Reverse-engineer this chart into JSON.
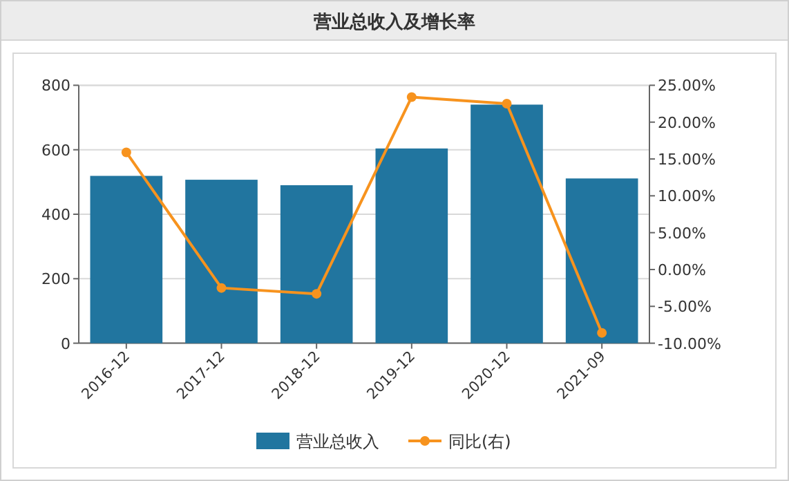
{
  "chart_data": {
    "type": "bar",
    "title": "营业总收入及增长率",
    "categories": [
      "2016-12",
      "2017-12",
      "2018-12",
      "2019-12",
      "2020-12",
      "2021-09"
    ],
    "series": [
      {
        "name": "营业总收入",
        "type": "bar",
        "color": "#21759f",
        "values": [
          519,
          507,
          490,
          604,
          740,
          511
        ]
      },
      {
        "name": "同比(右)",
        "type": "line",
        "axis": "y2",
        "color": "#f7931e",
        "marker": "circle",
        "values": [
          15.9,
          -2.5,
          -3.3,
          23.4,
          22.5,
          -8.6
        ]
      }
    ],
    "ylim": [
      0,
      800
    ],
    "yticks": [
      0,
      200,
      400,
      600,
      800
    ],
    "y2lim": [
      -10,
      25
    ],
    "y2ticks": [
      {
        "value": -10,
        "label": "-10.00%"
      },
      {
        "value": -5,
        "label": "-5.00%"
      },
      {
        "value": 0,
        "label": "0.00%"
      },
      {
        "value": 5,
        "label": "5.00%"
      },
      {
        "value": 10,
        "label": "10.00%"
      },
      {
        "value": 15,
        "label": "15.00%"
      },
      {
        "value": 20,
        "label": "20.00%"
      },
      {
        "value": 25,
        "label": "25.00%"
      }
    ],
    "grid": "y",
    "legend": "bottom"
  }
}
